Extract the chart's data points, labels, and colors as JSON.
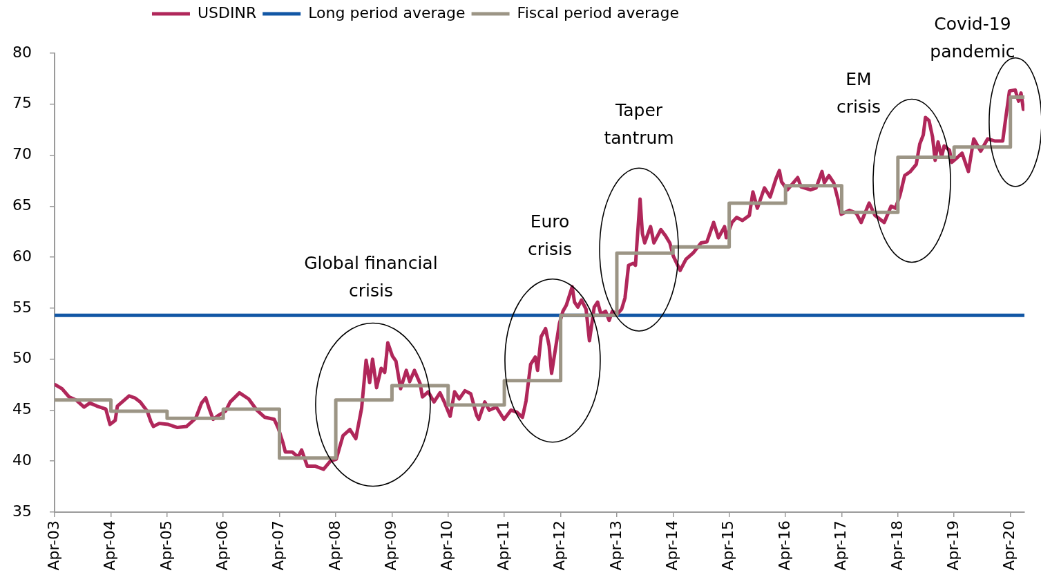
{
  "chart_data": {
    "type": "line",
    "legend": "top",
    "grid": false,
    "marker": "none",
    "xlim": [
      "2003-04-01",
      "2020-07-01"
    ],
    "xticks": [
      {
        "value": "2003-04-01",
        "label": "Apr-03"
      },
      {
        "value": "2004-04-01",
        "label": "Apr-04"
      },
      {
        "value": "2005-04-01",
        "label": "Apr-05"
      },
      {
        "value": "2006-04-01",
        "label": "Apr-06"
      },
      {
        "value": "2007-04-01",
        "label": "Apr-07"
      },
      {
        "value": "2008-04-01",
        "label": "Apr-08"
      },
      {
        "value": "2009-04-01",
        "label": "Apr-09"
      },
      {
        "value": "2010-04-01",
        "label": "Apr-10"
      },
      {
        "value": "2011-04-01",
        "label": "Apr-11"
      },
      {
        "value": "2012-04-01",
        "label": "Apr-12"
      },
      {
        "value": "2013-04-01",
        "label": "Apr-13"
      },
      {
        "value": "2014-04-01",
        "label": "Apr-14"
      },
      {
        "value": "2015-04-01",
        "label": "Apr-15"
      },
      {
        "value": "2016-04-01",
        "label": "Apr-16"
      },
      {
        "value": "2017-04-01",
        "label": "Apr-17"
      },
      {
        "value": "2018-04-01",
        "label": "Apr-18"
      },
      {
        "value": "2019-04-01",
        "label": "Apr-19"
      },
      {
        "value": "2020-04-01",
        "label": "Apr-20"
      }
    ],
    "ylim": [
      35,
      80
    ],
    "yticks": [
      35,
      40,
      45,
      50,
      55,
      60,
      65,
      70,
      75,
      80
    ],
    "series": [
      {
        "name": "USDINR",
        "type": "line",
        "color": "#b0275a",
        "x": [
          "2003-04-05",
          "2003-05-19",
          "2003-07-04",
          "2003-08-18",
          "2003-10-10",
          "2003-11-16",
          "2004-01-01",
          "2004-02-28",
          "2004-03-26",
          "2004-04-29",
          "2004-05-13",
          "2004-06-13",
          "2004-07-28",
          "2004-09-04",
          "2004-10-09",
          "2004-11-23",
          "2004-12-16",
          "2005-01-02",
          "2005-02-09",
          "2005-04-08",
          "2005-06-07",
          "2005-08-05",
          "2005-10-04",
          "2005-11-11",
          "2005-12-08",
          "2006-01-03",
          "2006-01-25",
          "2006-03-02",
          "2006-04-16",
          "2006-05-16",
          "2006-07-15",
          "2006-09-13",
          "2006-11-05",
          "2006-12-27",
          "2007-02-26",
          "2007-03-25",
          "2007-04-24",
          "2007-05-09",
          "2007-06-23",
          "2007-07-31",
          "2007-08-23",
          "2007-09-29",
          "2007-11-21",
          "2008-01-12",
          "2008-02-26",
          "2008-04-04",
          "2008-05-18",
          "2008-07-02",
          "2008-08-09",
          "2008-09-16",
          "2008-10-15",
          "2008-11-07",
          "2008-11-26",
          "2008-12-22",
          "2009-01-21",
          "2009-02-13",
          "2009-03-05",
          "2009-04-04",
          "2009-04-27",
          "2009-05-27",
          "2009-07-03",
          "2009-07-25",
          "2009-08-25",
          "2009-10-01",
          "2009-10-16",
          "2009-11-23",
          "2009-12-30",
          "2010-02-07",
          "2010-03-07",
          "2010-04-14",
          "2010-05-13",
          "2010-06-12",
          "2010-07-19",
          "2010-08-26",
          "2010-10-03",
          "2010-10-17",
          "2010-11-25",
          "2010-12-24",
          "2011-02-08",
          "2011-03-30",
          "2011-05-14",
          "2011-06-21",
          "2011-07-28",
          "2011-08-20",
          "2011-09-19",
          "2011-10-19",
          "2011-11-03",
          "2011-11-26",
          "2011-12-25",
          "2012-01-17",
          "2012-02-02",
          "2012-03-24",
          "2012-04-16",
          "2012-05-08",
          "2012-06-15",
          "2012-06-30",
          "2012-07-22",
          "2012-08-14",
          "2012-09-13",
          "2012-10-05",
          "2012-11-05",
          "2012-11-27",
          "2012-12-19",
          "2013-01-18",
          "2013-02-10",
          "2013-03-03",
          "2013-04-02",
          "2013-05-02",
          "2013-05-24",
          "2013-06-16",
          "2013-07-16",
          "2013-07-31",
          "2013-08-08",
          "2013-08-30",
          "2013-09-14",
          "2013-09-29",
          "2013-11-06",
          "2013-11-28",
          "2014-01-12",
          "2014-02-11",
          "2014-03-11",
          "2014-04-03",
          "2014-05-17",
          "2014-06-24",
          "2014-08-09",
          "2014-09-30",
          "2014-11-07",
          "2014-12-21",
          "2015-01-21",
          "2015-03-02",
          "2015-03-13",
          "2015-04-19",
          "2015-05-19",
          "2015-06-26",
          "2015-08-10",
          "2015-09-02",
          "2015-10-01",
          "2015-11-16",
          "2015-12-23",
          "2016-01-30",
          "2016-02-21",
          "2016-03-06",
          "2016-04-13",
          "2016-05-28",
          "2016-06-19",
          "2016-07-11",
          "2016-09-10",
          "2016-10-17",
          "2016-11-24",
          "2016-12-09",
          "2017-01-08",
          "2017-02-08",
          "2017-03-07",
          "2017-03-29",
          "2017-05-21",
          "2017-07-05",
          "2017-08-05",
          "2017-09-26",
          "2017-11-03",
          "2018-01-02",
          "2018-02-16",
          "2018-03-16",
          "2018-04-15",
          "2018-05-15",
          "2018-06-21",
          "2018-07-29",
          "2018-08-21",
          "2018-09-13",
          "2018-09-27",
          "2018-10-20",
          "2018-11-12",
          "2018-11-29",
          "2018-12-18",
          "2019-01-10",
          "2019-01-26",
          "2019-03-02",
          "2019-03-17",
          "2019-04-24",
          "2019-05-23",
          "2019-07-03",
          "2019-08-07",
          "2019-09-21",
          "2019-11-05",
          "2019-12-20",
          "2020-02-11",
          "2020-03-03",
          "2020-03-26",
          "2020-05-02",
          "2020-05-24",
          "2020-06-09",
          "2020-06-24"
        ],
        "values": [
          47.5,
          47.1,
          46.3,
          46.0,
          45.3,
          45.7,
          45.4,
          45.1,
          43.6,
          44.0,
          45.4,
          45.8,
          46.4,
          46.2,
          45.8,
          44.9,
          43.9,
          43.4,
          43.7,
          43.6,
          43.3,
          43.4,
          44.2,
          45.7,
          46.2,
          45.0,
          44.1,
          44.5,
          44.9,
          45.8,
          46.7,
          46.1,
          45.0,
          44.3,
          44.1,
          43.2,
          41.8,
          40.9,
          40.9,
          40.4,
          41.1,
          39.5,
          39.5,
          39.2,
          40.0,
          40.2,
          42.5,
          43.1,
          42.2,
          45.2,
          49.9,
          47.7,
          50.0,
          47.2,
          49.1,
          48.7,
          51.6,
          50.3,
          49.8,
          47.1,
          48.9,
          47.8,
          48.9,
          47.6,
          46.3,
          46.8,
          45.8,
          46.7,
          45.8,
          44.4,
          46.8,
          46.1,
          46.9,
          46.6,
          44.5,
          44.1,
          45.8,
          45.0,
          45.3,
          44.1,
          45.0,
          44.8,
          44.3,
          45.9,
          49.5,
          50.2,
          48.9,
          52.2,
          53.0,
          51.3,
          48.6,
          53.5,
          54.7,
          55.3,
          57.1,
          55.6,
          55.1,
          55.8,
          54.9,
          51.8,
          55.1,
          55.6,
          54.4,
          54.7,
          53.8,
          54.7,
          54.4,
          54.9,
          56.0,
          59.2,
          59.4,
          59.2,
          61.0,
          65.7,
          62.3,
          61.4,
          63.0,
          61.4,
          62.7,
          62.1,
          61.4,
          60.1,
          58.7,
          59.8,
          60.4,
          61.4,
          61.5,
          63.4,
          61.9,
          63.0,
          61.9,
          63.4,
          63.9,
          63.6,
          64.1,
          66.4,
          64.8,
          66.8,
          65.9,
          67.7,
          68.5,
          67.4,
          66.6,
          67.4,
          67.8,
          66.9,
          66.6,
          66.8,
          68.4,
          67.3,
          68.0,
          67.3,
          65.7,
          64.2,
          64.6,
          64.3,
          63.4,
          65.3,
          64.1,
          63.4,
          65.0,
          64.8,
          66.1,
          68.0,
          68.4,
          69.1,
          71.1,
          72.0,
          73.7,
          73.4,
          71.8,
          69.5,
          71.3,
          69.8,
          70.9,
          70.5,
          69.3,
          69.8,
          70.2,
          68.4,
          71.6,
          70.4,
          71.6,
          71.4,
          71.4,
          73.8,
          76.3,
          76.4,
          75.3,
          76.1,
          74.5
        ]
      },
      {
        "name": "Long period average",
        "type": "line",
        "color": "#1257a5",
        "x": [
          "2003-04-01",
          "2020-07-01"
        ],
        "values": [
          54.3,
          54.3
        ]
      },
      {
        "name": "Fiscal period average",
        "type": "step",
        "color": "#9c9585",
        "x": [
          "2003-04-01",
          "2004-04-01",
          "2005-04-01",
          "2006-04-01",
          "2007-04-01",
          "2008-04-01",
          "2009-04-01",
          "2010-04-01",
          "2011-04-01",
          "2012-04-01",
          "2013-04-01",
          "2014-04-01",
          "2015-04-01",
          "2016-04-01",
          "2017-04-01",
          "2018-04-01",
          "2019-04-01",
          "2020-04-01",
          "2020-07-01"
        ],
        "values": [
          46.0,
          44.9,
          44.2,
          45.1,
          40.3,
          46.0,
          47.4,
          45.5,
          47.9,
          54.3,
          60.4,
          61.0,
          65.3,
          67.0,
          64.4,
          69.8,
          70.8,
          75.7,
          75.7
        ]
      }
    ],
    "annotations": [
      "Global financial crisis",
      "Euro crisis",
      "Taper tantrum",
      "EM crisis",
      "Covid-19 pandemic"
    ]
  }
}
